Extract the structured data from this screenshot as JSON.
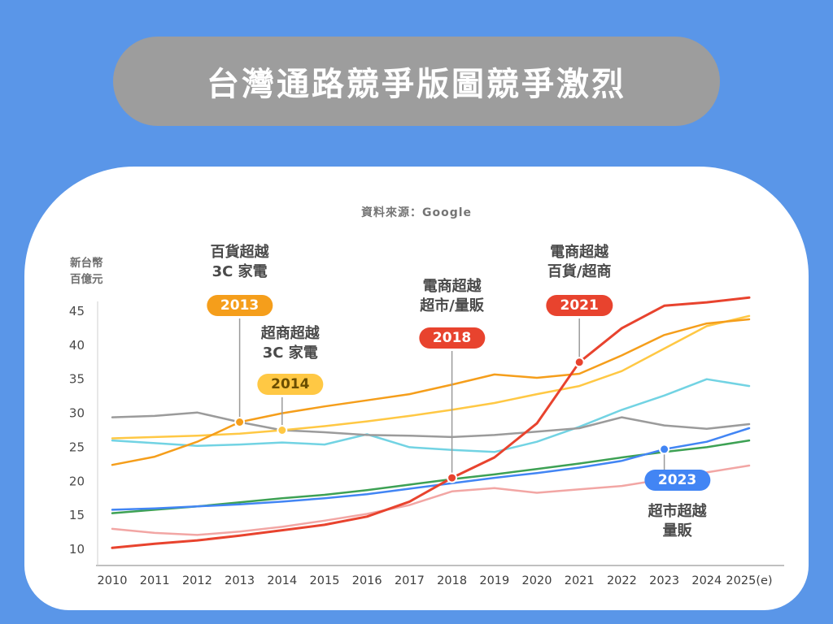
{
  "banner": {
    "title": "台灣通路競爭版圖競爭激烈"
  },
  "chart_data": {
    "type": "line",
    "title": "台灣通路競爭版圖競爭激烈",
    "source": "資料來源：Google",
    "unit_lines": [
      "新台幣",
      "百億元"
    ],
    "x_labels": [
      "2010",
      "2011",
      "2012",
      "2013",
      "2014",
      "2015",
      "2016",
      "2017",
      "2018",
      "2019",
      "2020",
      "2021",
      "2022",
      "2023",
      "2024",
      "2025(e)"
    ],
    "y_ticks": [
      10,
      15,
      20,
      25,
      30,
      35,
      40,
      45
    ],
    "ylim": [
      10,
      47
    ],
    "grid": false,
    "legend": "none",
    "series": [
      {
        "id": "pink-line",
        "name": "",
        "color": "#F2A6A4",
        "values": [
          13,
          12.4,
          12.1,
          12.6,
          13.3,
          14.2,
          15.2,
          16.5,
          18.5,
          19,
          18.3,
          18.8,
          19.3,
          20.3,
          21.3,
          22.3
        ]
      },
      {
        "id": "hypermarket",
        "name": "量販",
        "color": "#3DA154",
        "values": [
          15.3,
          15.8,
          16.3,
          16.9,
          17.5,
          18,
          18.7,
          19.5,
          20.3,
          21,
          21.8,
          22.6,
          23.5,
          24.3,
          25,
          26
        ]
      },
      {
        "id": "supermarket",
        "name": "超市",
        "color": "#4285F4",
        "values": [
          15.8,
          16,
          16.3,
          16.6,
          17,
          17.5,
          18.1,
          18.9,
          19.7,
          20.5,
          21.2,
          22,
          23,
          24.7,
          25.8,
          27.8
        ]
      },
      {
        "id": "cyan-line",
        "name": "",
        "color": "#72D3E3",
        "values": [
          26,
          25.6,
          25.2,
          25.4,
          25.7,
          25.4,
          26.9,
          25,
          24.6,
          24.3,
          25.8,
          28,
          30.5,
          32.6,
          35,
          34
        ]
      },
      {
        "id": "3c-appliance",
        "name": "3C家電",
        "color": "#9B9B9B",
        "values": [
          29.4,
          29.6,
          30.1,
          28.7,
          27.5,
          27.2,
          26.8,
          26.7,
          26.5,
          26.8,
          27.3,
          27.8,
          29.4,
          28.2,
          27.7,
          28.4
        ]
      },
      {
        "id": "convenience-store",
        "name": "超商",
        "color": "#FFC844",
        "values": [
          26.3,
          26.5,
          26.7,
          27,
          27.5,
          28.1,
          28.8,
          29.6,
          30.5,
          31.5,
          32.8,
          34,
          36.2,
          39.5,
          42.8,
          44.3
        ]
      },
      {
        "id": "department-store",
        "name": "百貨",
        "color": "#F59E1B",
        "values": [
          22.4,
          23.6,
          25.8,
          28.7,
          30,
          31,
          31.9,
          32.8,
          34.2,
          35.7,
          35.2,
          35.8,
          38.5,
          41.5,
          43.2,
          43.8
        ]
      },
      {
        "id": "ecommerce",
        "name": "電商",
        "color": "#E8432E",
        "width": 3,
        "values": [
          10.2,
          10.8,
          11.3,
          12,
          12.8,
          13.6,
          14.8,
          17,
          20.5,
          23.5,
          28.5,
          37.5,
          42.5,
          45.8,
          46.3,
          47
        ]
      }
    ],
    "annotations": [
      {
        "id": "dept-passes-3c",
        "lines": [
          "百貨超越",
          "3C 家電"
        ],
        "pill_label": "2013",
        "pill_color": "#F59E1B",
        "pill_text_color": "#FFFFFF",
        "year": 2013,
        "value": 28.7,
        "dot_color": "#F59E1B"
      },
      {
        "id": "cvs-passes-3c",
        "lines": [
          "超商超越",
          "3C 家電"
        ],
        "pill_label": "2014",
        "pill_color": "#FFC844",
        "pill_text_color": "#6B4E00",
        "year": 2014,
        "value": 27.5,
        "dot_color": "#FFC844"
      },
      {
        "id": "ecom-passes-super-hyper",
        "lines": [
          "電商超越",
          "超市/量販"
        ],
        "pill_label": "2018",
        "pill_color": "#E8432E",
        "pill_text_color": "#FFFFFF",
        "year": 2018,
        "value": 20.5,
        "dot_color": "#E8432E"
      },
      {
        "id": "ecom-passes-dept-cvs",
        "lines": [
          "電商超越",
          "百貨/超商"
        ],
        "pill_label": "2021",
        "pill_color": "#E8432E",
        "pill_text_color": "#FFFFFF",
        "year": 2021,
        "value": 37.5,
        "dot_color": "#E8432E"
      },
      {
        "id": "super-passes-hyper",
        "lines": [
          "超市超越",
          "量販"
        ],
        "pill_label": "2023",
        "pill_color": "#4285F4",
        "pill_text_color": "#FFFFFF",
        "year": 2023,
        "value": 24.7,
        "dot_color": "#4285F4"
      }
    ]
  }
}
